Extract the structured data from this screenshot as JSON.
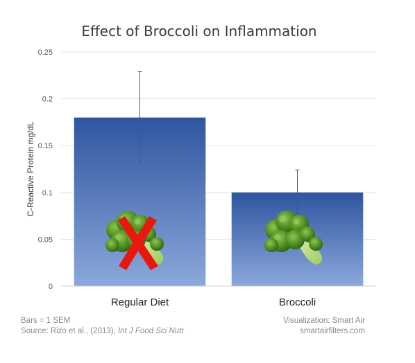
{
  "chart_data": {
    "type": "bar",
    "title": "Effect of Broccoli on Inflammation",
    "ylabel": "C-Reactive Protein mg/dL",
    "xlabel": "",
    "categories": [
      "Regular Diet",
      "Broccoli"
    ],
    "values": [
      0.18,
      0.1
    ],
    "error_bars": [
      [
        0.131,
        0.229
      ],
      [
        0.077,
        0.124
      ]
    ],
    "ylim": [
      0,
      0.25
    ],
    "yticks": [
      "0",
      "0.05",
      "0.1",
      "0.15",
      "0.2",
      "0.25"
    ],
    "grid": true,
    "bar_colors": {
      "top": "#2e55a0",
      "bottom": "#8ca8db"
    },
    "images": [
      {
        "category": "Regular Diet",
        "icon": "broccoli-icon",
        "overlay": "red-x-mark-icon"
      },
      {
        "category": "Broccoli",
        "icon": "broccoli-icon"
      }
    ]
  },
  "footer": {
    "bars_note": "Bars = 1 SEM",
    "source_prefix": "Source: Rizo et al., (2013), ",
    "source_journal": "Int J Food Sci Nutr",
    "visualization": "Visualization: Smart Air",
    "website": "smartairfilters.com"
  },
  "colors": {
    "cross": "#e8180e",
    "broccoli": "#4f8f1e"
  }
}
